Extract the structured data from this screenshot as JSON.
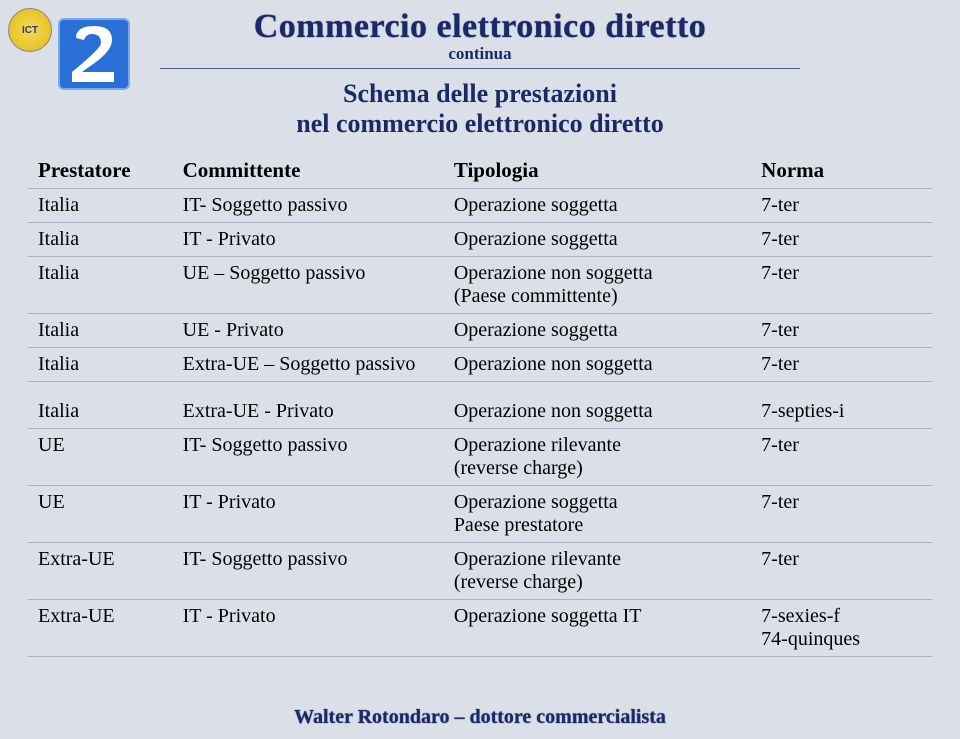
{
  "colors": {
    "page_bg": "#dbdfe8",
    "title_color": "#1a2a66",
    "icon_bg": "#2a6fd6",
    "icon_border": "#7aa8e8",
    "badge_bg": "#e8c830",
    "rule_color": "#aab0c0"
  },
  "logo": {
    "text": "ICT"
  },
  "number_icon": {
    "digit": "2"
  },
  "header": {
    "title": "Commercio elettronico diretto",
    "continua": "continua",
    "schema_line1": "Schema delle prestazioni",
    "schema_line2": "nel commercio elettronico diretto"
  },
  "table": {
    "columns": [
      "Prestatore",
      "Committente",
      "Tipologia",
      "Norma"
    ],
    "rows_top": [
      {
        "prestatore": "Italia",
        "committente": "IT- Soggetto passivo",
        "tipologia": "Operazione soggetta",
        "norma": "7-ter"
      },
      {
        "prestatore": "Italia",
        "committente": "IT - Privato",
        "tipologia": "Operazione soggetta",
        "norma": "7-ter"
      },
      {
        "prestatore": "Italia",
        "committente": "UE – Soggetto passivo",
        "tipologia": "Operazione non soggetta\n(Paese committente)",
        "norma": "7-ter"
      },
      {
        "prestatore": "Italia",
        "committente": "UE - Privato",
        "tipologia": "Operazione soggetta",
        "norma": "7-ter"
      },
      {
        "prestatore": "Italia",
        "committente": "Extra-UE – Soggetto passivo",
        "tipologia": "Operazione non soggetta",
        "norma": "7-ter"
      }
    ],
    "rows_bottom": [
      {
        "prestatore": "Italia",
        "committente": "Extra-UE - Privato",
        "tipologia": "Operazione non soggetta",
        "norma": "7-septies-i"
      },
      {
        "prestatore": "UE",
        "committente": "IT- Soggetto passivo",
        "tipologia": "Operazione rilevante\n(reverse charge)",
        "norma": "7-ter"
      },
      {
        "prestatore": "UE",
        "committente": "IT - Privato",
        "tipologia": "Operazione soggetta\nPaese prestatore",
        "norma": "7-ter"
      },
      {
        "prestatore": "Extra-UE",
        "committente": "IT- Soggetto passivo",
        "tipologia": "Operazione rilevante\n(reverse charge)",
        "norma": "7-ter"
      },
      {
        "prestatore": "Extra-UE",
        "committente": "IT - Privato",
        "tipologia": "Operazione soggetta IT",
        "norma": "7-sexies-f\n74-quinques"
      }
    ]
  },
  "footer": "Walter Rotondaro – dottore commercialista"
}
